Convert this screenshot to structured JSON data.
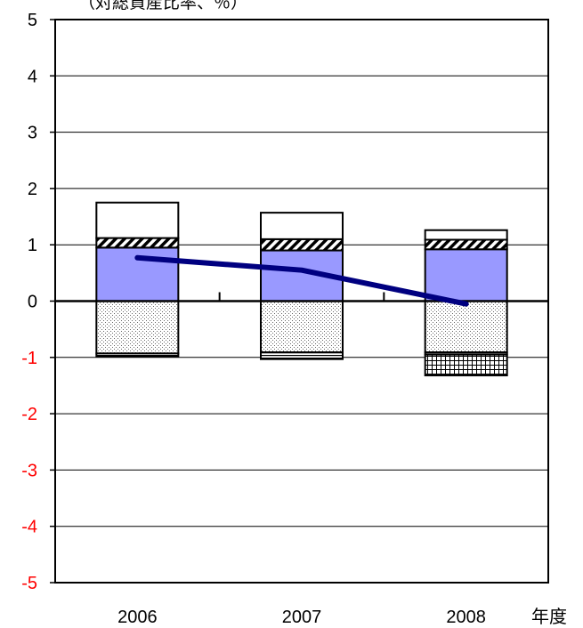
{
  "chart_data": {
    "type": "bar",
    "stacked": true,
    "title": "",
    "ylabel": "（対総資産比率、％）",
    "xlabel": "年度",
    "categories": [
      "2006",
      "2007",
      "2008"
    ],
    "ylim": [
      -5,
      5
    ],
    "yticks": [
      "5",
      "4",
      "3",
      "2",
      "1",
      "0",
      "-1",
      "-2",
      "-3",
      "-4",
      "-5"
    ],
    "grid": true,
    "legend": "none",
    "positive_series": [
      {
        "pattern": "solid",
        "color": "#9999ff",
        "values": [
          0.95,
          0.9,
          0.92
        ]
      },
      {
        "pattern": "diagonal-hatch",
        "color": "#ffffff",
        "values": [
          0.17,
          0.2,
          0.17
        ]
      },
      {
        "pattern": "white",
        "color": "#ffffff",
        "values": [
          0.63,
          0.47,
          0.17
        ]
      }
    ],
    "negative_series": [
      {
        "pattern": "dots",
        "color": "#ffffff",
        "values": [
          -0.93,
          -0.91,
          -0.91
        ]
      },
      {
        "pattern": "horizontal-lines",
        "color": "#ffffff",
        "values": [
          -0.05,
          -0.12,
          -0.04
        ]
      },
      {
        "pattern": "grid",
        "color": "#ffffff",
        "values": [
          0,
          0,
          -0.37
        ]
      }
    ],
    "line_series": {
      "color": "#000080",
      "values": [
        0.77,
        0.55,
        -0.05
      ]
    },
    "colors": {
      "negative_tick": "#ff0000"
    }
  }
}
